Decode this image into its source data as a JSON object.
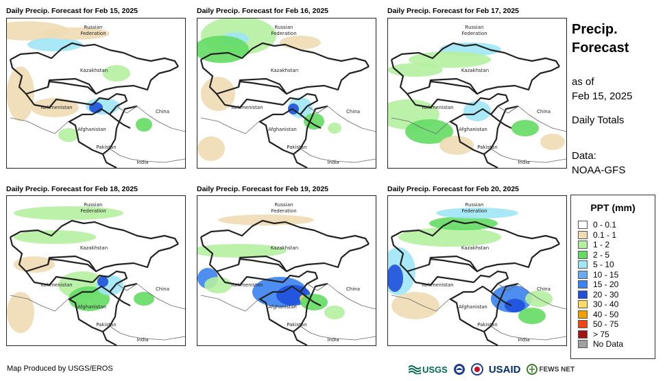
{
  "panels": [
    {
      "title": "Daily Precip. Forecast for Feb 15, 2025"
    },
    {
      "title": "Daily Precip. Forecast for Feb 16, 2025"
    },
    {
      "title": "Daily Precip. Forecast for Feb 17, 2025"
    },
    {
      "title": "Daily Precip. Forecast for Feb 18, 2025"
    },
    {
      "title": "Daily Precip. Forecast for Feb 19, 2025"
    },
    {
      "title": "Daily Precip. Forecast for Feb 20, 2025"
    }
  ],
  "map_labels": {
    "russia_1": "Russian",
    "russia_2": "Federation",
    "kazakhstan": "Kazakhstan",
    "turkmenistan": "Turkmenistan",
    "afghanistan": "Afghanistan",
    "pakistan": "Pakistan",
    "china": "China",
    "india": "India"
  },
  "sidebar": {
    "title_1": "Precip.",
    "title_2": "Forecast",
    "as_of_1": "as of",
    "as_of_2": "Feb 15, 2025",
    "totals": "Daily Totals",
    "data_1": "Data:",
    "data_2": "NOAA-GFS"
  },
  "legend": {
    "title": "PPT (mm)",
    "items": [
      {
        "label": "0 - 0.1",
        "color": "#ffffff"
      },
      {
        "label": "0.1 - 1",
        "color": "#f0dcb4"
      },
      {
        "label": "1 - 2",
        "color": "#b4f0a0"
      },
      {
        "label": "2 - 5",
        "color": "#64dc64"
      },
      {
        "label": "5 - 10",
        "color": "#a0e6f5"
      },
      {
        "label": "10 - 15",
        "color": "#6eaaf0"
      },
      {
        "label": "15 - 20",
        "color": "#3c82f0"
      },
      {
        "label": "20 - 30",
        "color": "#1e50dc"
      },
      {
        "label": "30 - 40",
        "color": "#fadc64"
      },
      {
        "label": "40 - 50",
        "color": "#f0a000"
      },
      {
        "label": "50 - 75",
        "color": "#f04614"
      },
      {
        "label": "> 75",
        "color": "#a01414"
      },
      {
        "label": "No Data",
        "color": "#a0a0a0"
      }
    ]
  },
  "footer": {
    "credit": "Map Produced by USGS/EROS",
    "usgs": "USGS",
    "usaid": "USAID",
    "fewsnet": "FEWS NET"
  }
}
